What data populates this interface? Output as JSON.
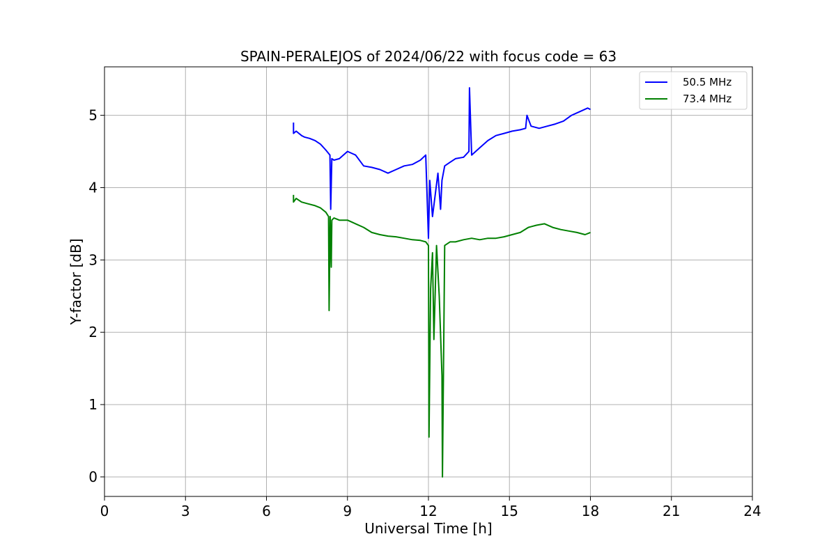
{
  "chart_data": {
    "type": "line",
    "title": "SPAIN-PERALEJOS of 2024/06/22 with focus code = 63",
    "xlabel": "Universal Time [h]",
    "ylabel": "Y-factor [dB]",
    "xlim": [
      0,
      24
    ],
    "ylim": [
      -0.27,
      5.67
    ],
    "xticks": [
      0,
      3,
      6,
      9,
      12,
      15,
      18,
      21,
      24
    ],
    "yticks": [
      0,
      1,
      2,
      3,
      4,
      5
    ],
    "grid": true,
    "legend_position": "top-right",
    "series": [
      {
        "name": "50.5 MHz",
        "color": "#0000ff",
        "x": [
          7.0,
          7.0,
          7.1,
          7.3,
          7.4,
          7.6,
          7.8,
          8.0,
          8.2,
          8.35,
          8.38,
          8.42,
          8.5,
          8.7,
          9.0,
          9.3,
          9.6,
          9.9,
          10.2,
          10.5,
          10.8,
          11.1,
          11.4,
          11.7,
          11.9,
          12.0,
          12.05,
          12.15,
          12.25,
          12.35,
          12.45,
          12.5,
          12.6,
          12.8,
          13.0,
          13.3,
          13.5,
          13.52,
          13.6,
          13.9,
          14.2,
          14.5,
          14.8,
          15.1,
          15.4,
          15.6,
          15.65,
          15.8,
          16.1,
          16.4,
          16.7,
          17.0,
          17.3,
          17.6,
          17.9,
          18.0
        ],
        "y": [
          4.9,
          4.75,
          4.78,
          4.72,
          4.7,
          4.68,
          4.65,
          4.6,
          4.52,
          4.45,
          3.7,
          4.4,
          4.38,
          4.4,
          4.5,
          4.45,
          4.3,
          4.28,
          4.25,
          4.2,
          4.25,
          4.3,
          4.32,
          4.38,
          4.45,
          3.3,
          4.1,
          3.6,
          3.9,
          4.2,
          3.7,
          4.1,
          4.3,
          4.35,
          4.4,
          4.42,
          4.5,
          5.38,
          4.45,
          4.55,
          4.65,
          4.72,
          4.75,
          4.78,
          4.8,
          4.82,
          5.0,
          4.85,
          4.82,
          4.85,
          4.88,
          4.92,
          5.0,
          5.05,
          5.1,
          5.08
        ]
      },
      {
        "name": "73.4 MHz",
        "color": "#008000",
        "x": [
          7.0,
          7.0,
          7.1,
          7.3,
          7.5,
          7.8,
          8.0,
          8.2,
          8.3,
          8.32,
          8.36,
          8.4,
          8.42,
          8.5,
          8.7,
          9.0,
          9.3,
          9.6,
          9.9,
          10.2,
          10.5,
          10.8,
          11.1,
          11.4,
          11.7,
          11.9,
          12.0,
          12.02,
          12.08,
          12.15,
          12.2,
          12.3,
          12.4,
          12.5,
          12.52,
          12.6,
          12.8,
          13.0,
          13.3,
          13.6,
          13.9,
          14.2,
          14.5,
          14.8,
          15.1,
          15.4,
          15.7,
          16.0,
          16.3,
          16.6,
          16.9,
          17.2,
          17.5,
          17.8,
          18.0
        ],
        "y": [
          3.9,
          3.8,
          3.85,
          3.8,
          3.78,
          3.75,
          3.72,
          3.66,
          3.6,
          2.3,
          3.6,
          2.9,
          3.55,
          3.58,
          3.55,
          3.55,
          3.5,
          3.45,
          3.38,
          3.35,
          3.33,
          3.32,
          3.3,
          3.28,
          3.27,
          3.25,
          3.2,
          0.55,
          2.6,
          3.1,
          1.9,
          3.2,
          2.5,
          1.4,
          0.0,
          3.2,
          3.25,
          3.25,
          3.28,
          3.3,
          3.28,
          3.3,
          3.3,
          3.32,
          3.35,
          3.38,
          3.45,
          3.48,
          3.5,
          3.45,
          3.42,
          3.4,
          3.38,
          3.35,
          3.38
        ]
      }
    ]
  }
}
